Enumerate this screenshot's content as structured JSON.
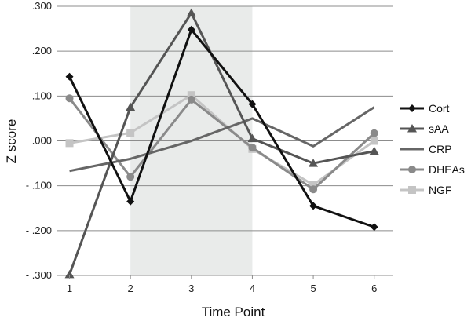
{
  "chart_data": {
    "type": "line",
    "xlabel": "Time Point",
    "ylabel": "Z score",
    "x": [
      1,
      2,
      3,
      4,
      5,
      6
    ],
    "x_tick_labels": [
      "1",
      "2",
      "3",
      "4",
      "5",
      "6"
    ],
    "y_tick_labels": [
      ".300",
      ".200",
      ".100",
      ".000",
      "- .100",
      "- .200",
      "- .300"
    ],
    "y_tick_values": [
      0.3,
      0.2,
      0.1,
      0.0,
      -0.1,
      -0.2,
      -0.3
    ],
    "ylim": [
      -0.3,
      0.3
    ],
    "xlim": [
      0.8,
      6.3
    ],
    "grid": true,
    "shaded_x_range": [
      2,
      4
    ],
    "legend_position": "right",
    "series": [
      {
        "name": "Cort",
        "marker": "diamond",
        "color": "#111111",
        "values": [
          0.143,
          -0.135,
          0.248,
          0.082,
          -0.145,
          -0.192
        ]
      },
      {
        "name": "sAA",
        "marker": "triangle",
        "color": "#555555",
        "values": [
          -0.298,
          0.075,
          0.285,
          0.005,
          -0.05,
          -0.023
        ]
      },
      {
        "name": "CRP",
        "marker": "none",
        "color": "#666666",
        "values": [
          -0.067,
          -0.04,
          0.0,
          0.05,
          -0.012,
          0.075
        ]
      },
      {
        "name": "DHEAs",
        "marker": "circle",
        "color": "#8a8a8a",
        "values": [
          0.095,
          -0.08,
          0.092,
          -0.015,
          -0.108,
          0.017
        ]
      },
      {
        "name": "NGF",
        "marker": "square",
        "color": "#c4c4c4",
        "values": [
          -0.005,
          0.018,
          0.102,
          -0.018,
          -0.098,
          0.0
        ]
      }
    ]
  }
}
